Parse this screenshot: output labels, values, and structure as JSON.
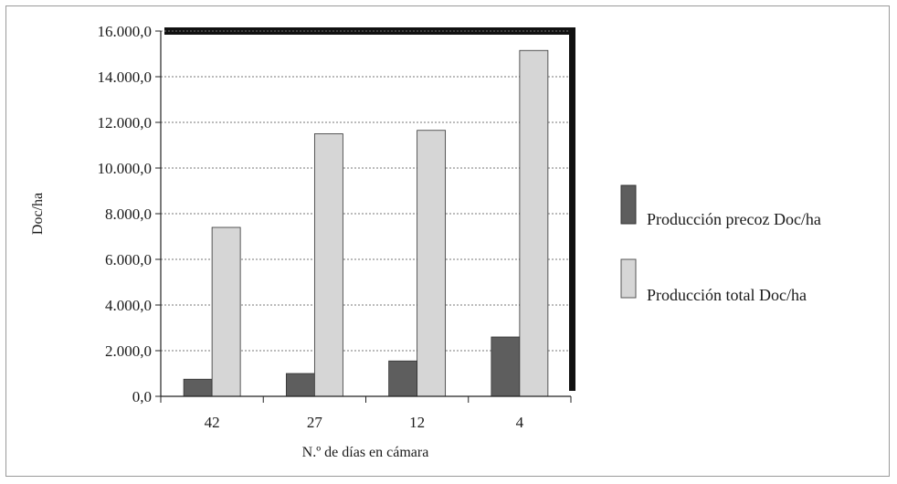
{
  "chart_data": {
    "type": "bar",
    "categories": [
      "42",
      "27",
      "12",
      "4"
    ],
    "series": [
      {
        "name": "Producción precoz Doc/ha",
        "values": [
          750,
          1000,
          1550,
          2600
        ],
        "color": "#5e5e5e"
      },
      {
        "name": "Producción total Doc/ha",
        "values": [
          7400,
          11500,
          11650,
          15150
        ],
        "color": "#d6d6d6"
      }
    ],
    "xlabel": "N.º de días en cámara",
    "ylabel": "Doc/ha",
    "ylim": [
      0,
      16000
    ],
    "yticks": [
      0,
      2000,
      4000,
      6000,
      8000,
      10000,
      12000,
      14000,
      16000
    ],
    "ytick_labels": [
      "0,0",
      "2.000,0",
      "4.000,0",
      "6.000,0",
      "8.000,0",
      "10.000,0",
      "12.000,0",
      "14.000,0",
      "16.000,0"
    ],
    "grid": "horizontal dotted",
    "legend_position": "right"
  }
}
